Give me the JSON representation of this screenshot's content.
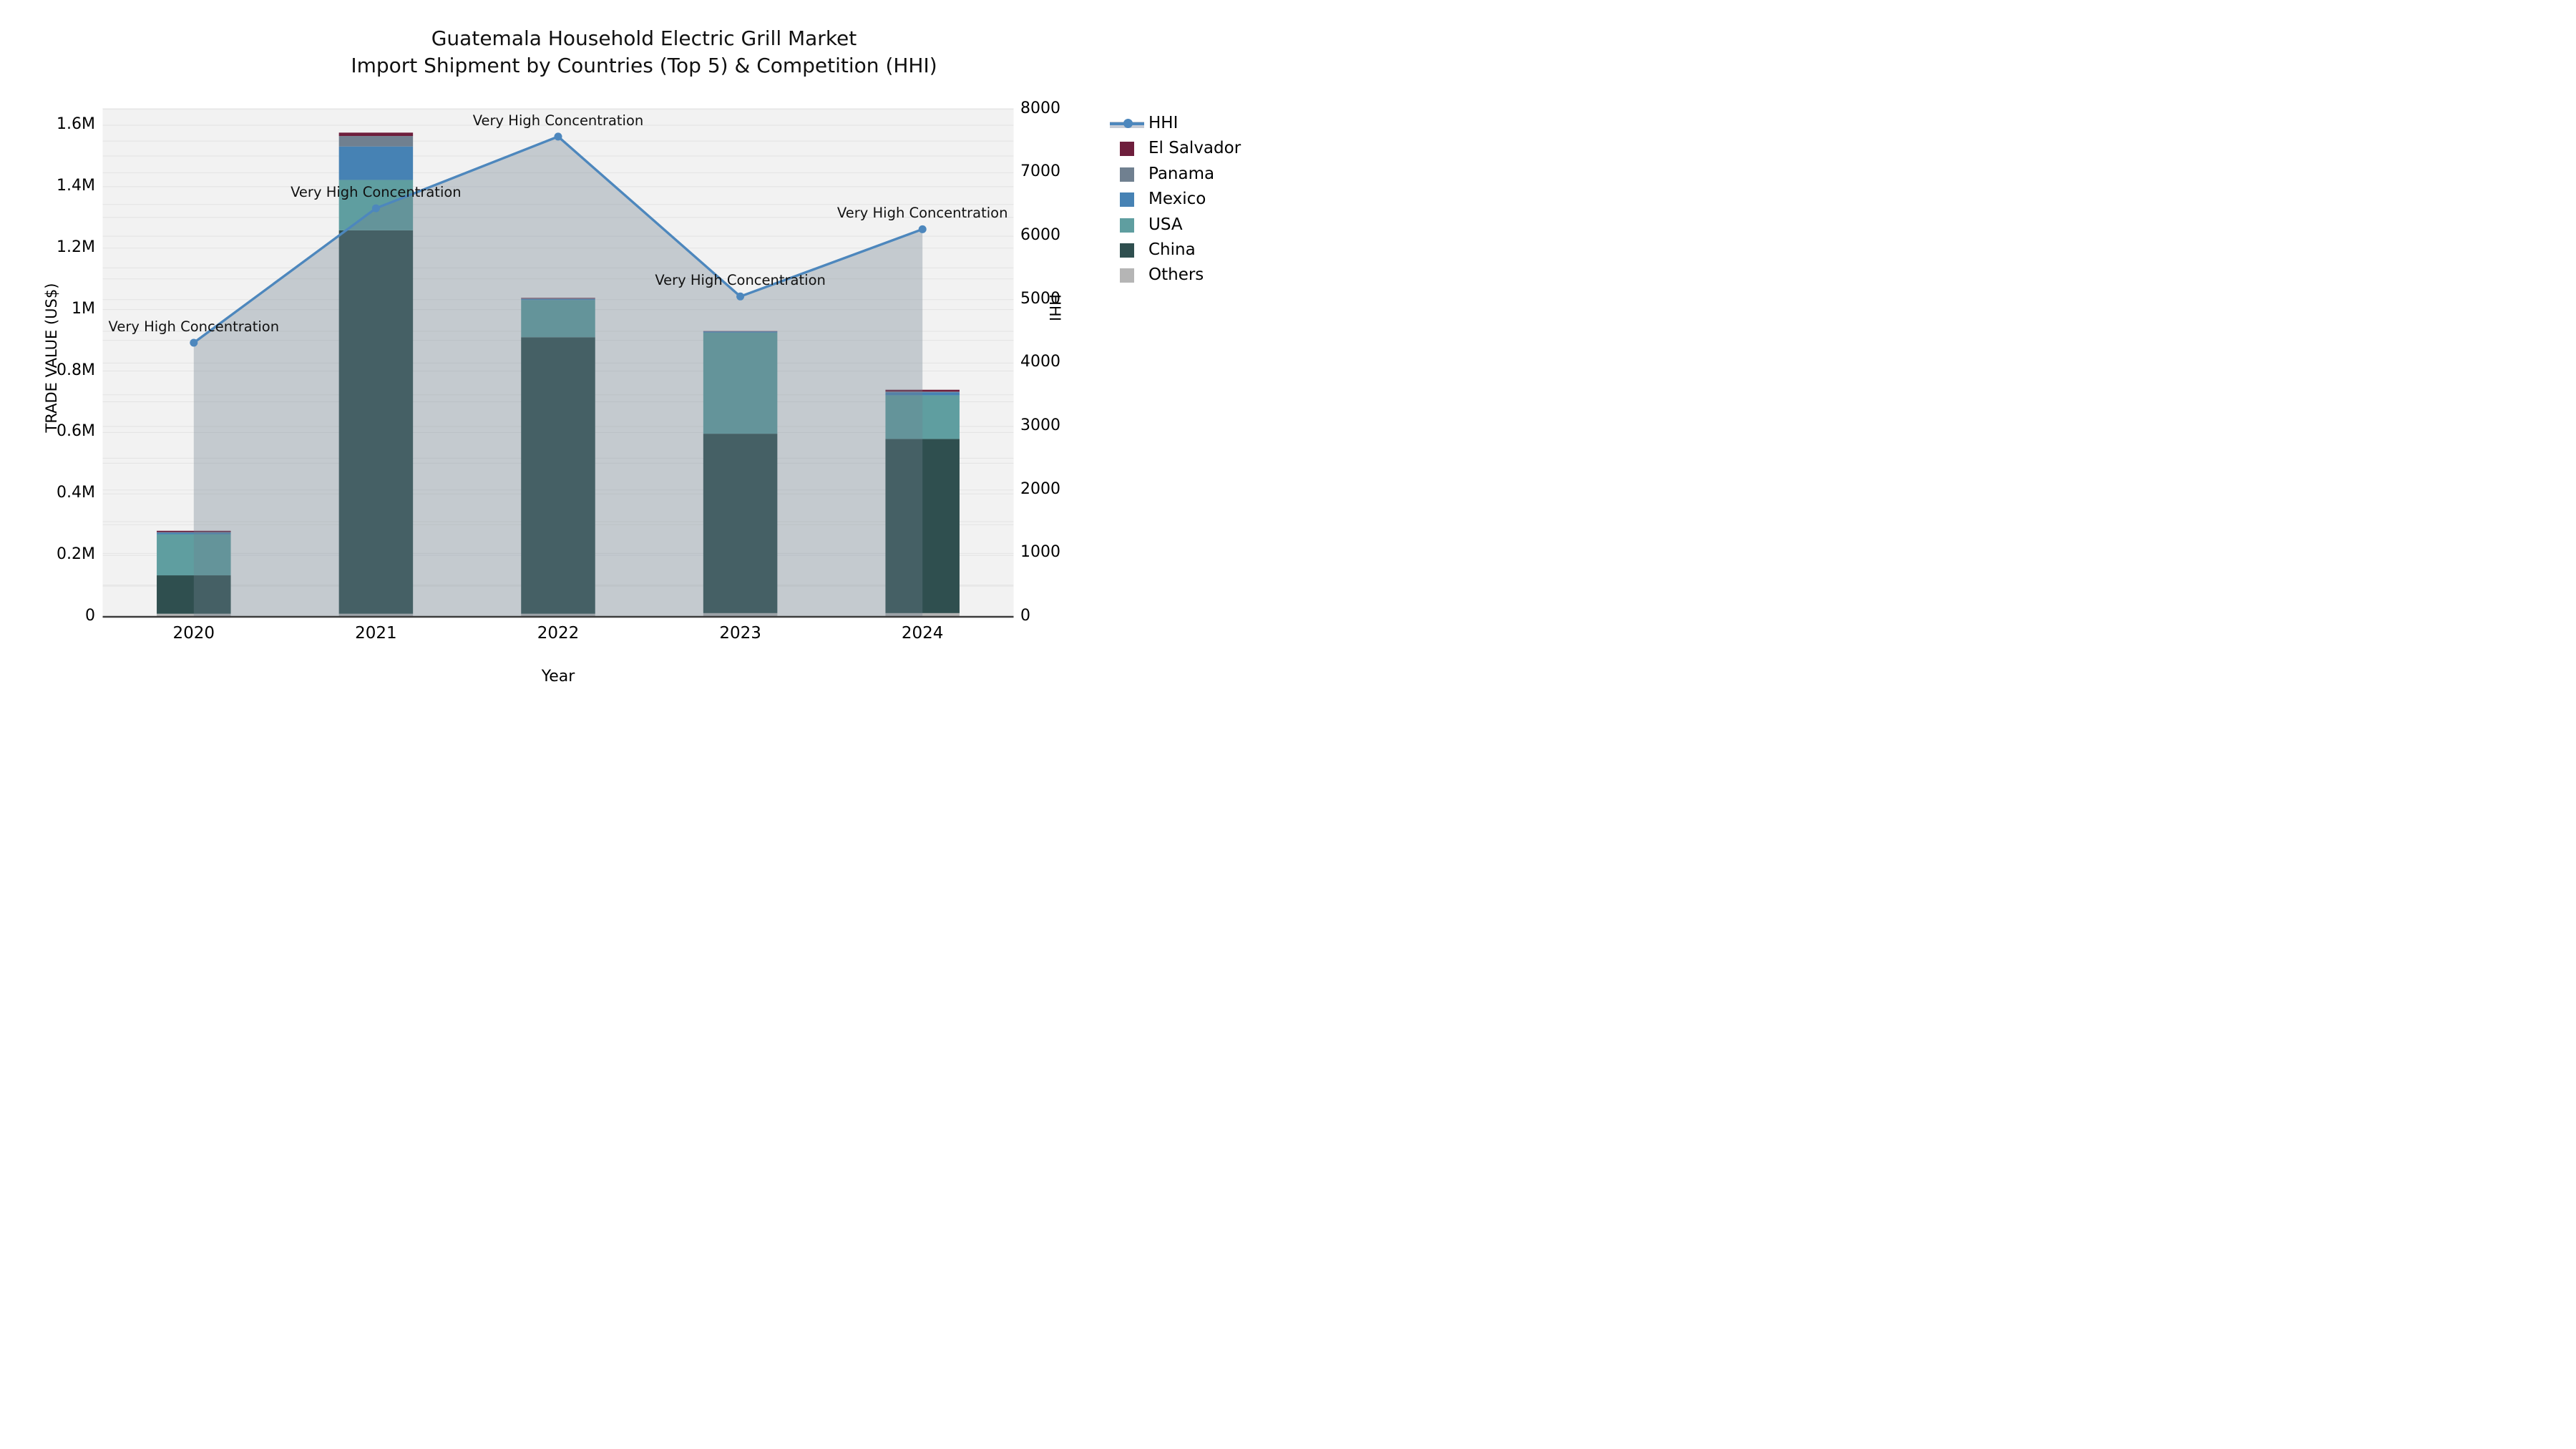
{
  "header": {
    "title_line1": "Guatemala Household Electric Grill Market",
    "title_line2": "Import Shipment by Countries (Top 5) & Competition (HHI)"
  },
  "chart_data": {
    "type": "bar+line",
    "title": "Guatemala Household Electric Grill Market\nImport Shipment by Countries (Top 5) & Competition (HHI)",
    "xlabel": "Year",
    "ylabel_left": "TRADE VALUE (US$)",
    "ylabel_right": "HHI",
    "unit": "US$ millions",
    "categories": [
      "2020",
      "2021",
      "2022",
      "2023",
      "2024"
    ],
    "series": [
      {
        "name": "Others",
        "color": "#B5B5B5",
        "values": [
          0.01,
          0.01,
          0.01,
          0.012,
          0.012
        ]
      },
      {
        "name": "China",
        "color": "#2F4F4F",
        "values": [
          0.125,
          1.248,
          0.9,
          0.584,
          0.567
        ]
      },
      {
        "name": "USA",
        "color": "#5F9EA0",
        "values": [
          0.134,
          0.164,
          0.121,
          0.329,
          0.142
        ]
      },
      {
        "name": "Mexico",
        "color": "#4682B4",
        "values": [
          0.005,
          0.109,
          0.004,
          0.004,
          0.01
        ]
      },
      {
        "name": "Panama",
        "color": "#708090",
        "values": [
          0.002,
          0.034,
          0.001,
          0.0,
          0.002
        ]
      },
      {
        "name": "El Salvador",
        "color": "#6E1E3C",
        "values": [
          0.004,
          0.011,
          0.002,
          0.001,
          0.006
        ]
      }
    ],
    "stack_totals": [
      0.28,
      1.576,
      1.038,
      0.93,
      0.739
    ],
    "hhi": {
      "name": "HHI",
      "color": "#4D87BD",
      "values": [
        4320,
        6440,
        7570,
        5050,
        6110
      ]
    },
    "annotations": [
      "Very High Concentration",
      "Very High Concentration",
      "Very High Concentration",
      "Very High Concentration",
      "Very High Concentration"
    ],
    "y_left_ticks": {
      "values": [
        0,
        0.2,
        0.4,
        0.6,
        0.8,
        1.0,
        1.2,
        1.4,
        1.6
      ],
      "labels": [
        "0",
        "0.2M",
        "0.4M",
        "0.6M",
        "0.8M",
        "1M",
        "1.2M",
        "1.4M",
        "1.6M"
      ]
    },
    "y_right_ticks": {
      "values": [
        0,
        1000,
        2000,
        3000,
        4000,
        5000,
        6000,
        7000,
        8000
      ],
      "labels": [
        "0",
        "1000",
        "2000",
        "3000",
        "4000",
        "5000",
        "6000",
        "7000",
        "8000"
      ]
    },
    "ylim_left": [
      0,
      1.656
    ],
    "ylim_right": [
      0,
      8020
    ],
    "legend_position": "right",
    "grid": true,
    "legend": [
      {
        "label": "HHI",
        "type": "line",
        "color": "#4D87BD"
      },
      {
        "label": "El Salvador",
        "type": "patch",
        "color": "#6E1E3C"
      },
      {
        "label": "Panama",
        "type": "patch",
        "color": "#708090"
      },
      {
        "label": "Mexico",
        "type": "patch",
        "color": "#4682B4"
      },
      {
        "label": "USA",
        "type": "patch",
        "color": "#5F9EA0"
      },
      {
        "label": "China",
        "type": "patch",
        "color": "#2F4F4F"
      },
      {
        "label": "Others",
        "type": "patch",
        "color": "#B5B5B5"
      }
    ],
    "colors": {
      "plot_background": "#f2f2f2",
      "grid_line": "#e3e3e3",
      "axis_line": "#3c3c3c",
      "hhi_area_fill": "rgba(112,128,144,0.35)",
      "annotation_text": "#111111"
    }
  }
}
